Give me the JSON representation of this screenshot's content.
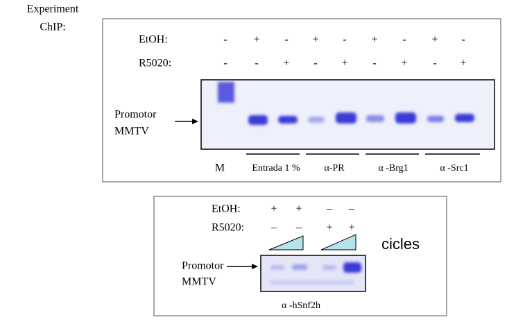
{
  "header": {
    "lines": [
      "Experiment",
      "ChIP:"
    ]
  },
  "panel_top": {
    "rows": [
      {
        "label": "EtOH:",
        "signs": [
          "-",
          "+",
          "-",
          "+",
          "-",
          "+",
          "-",
          "+",
          "-"
        ]
      },
      {
        "label": "R5020:",
        "signs": [
          "-",
          "-",
          "+",
          "-",
          "+",
          "-",
          "+",
          "-",
          "+"
        ]
      }
    ],
    "band_label": [
      "Promotor",
      "MMTV"
    ],
    "lanes": [
      "M",
      "Entrada 1 %",
      "α-PR",
      "α -Brg1",
      "α -Src1"
    ]
  },
  "panel_bottom": {
    "rows": [
      {
        "label": "EtOH:",
        "signs": [
          "+",
          "+",
          "–",
          "–"
        ]
      },
      {
        "label": "R5020:",
        "signs": [
          "–",
          "–",
          "+",
          "+"
        ]
      }
    ],
    "cycles_label": "cicles",
    "band_label": [
      "Promotor",
      "MMTV"
    ],
    "antibody": "α -hSnf2h"
  }
}
